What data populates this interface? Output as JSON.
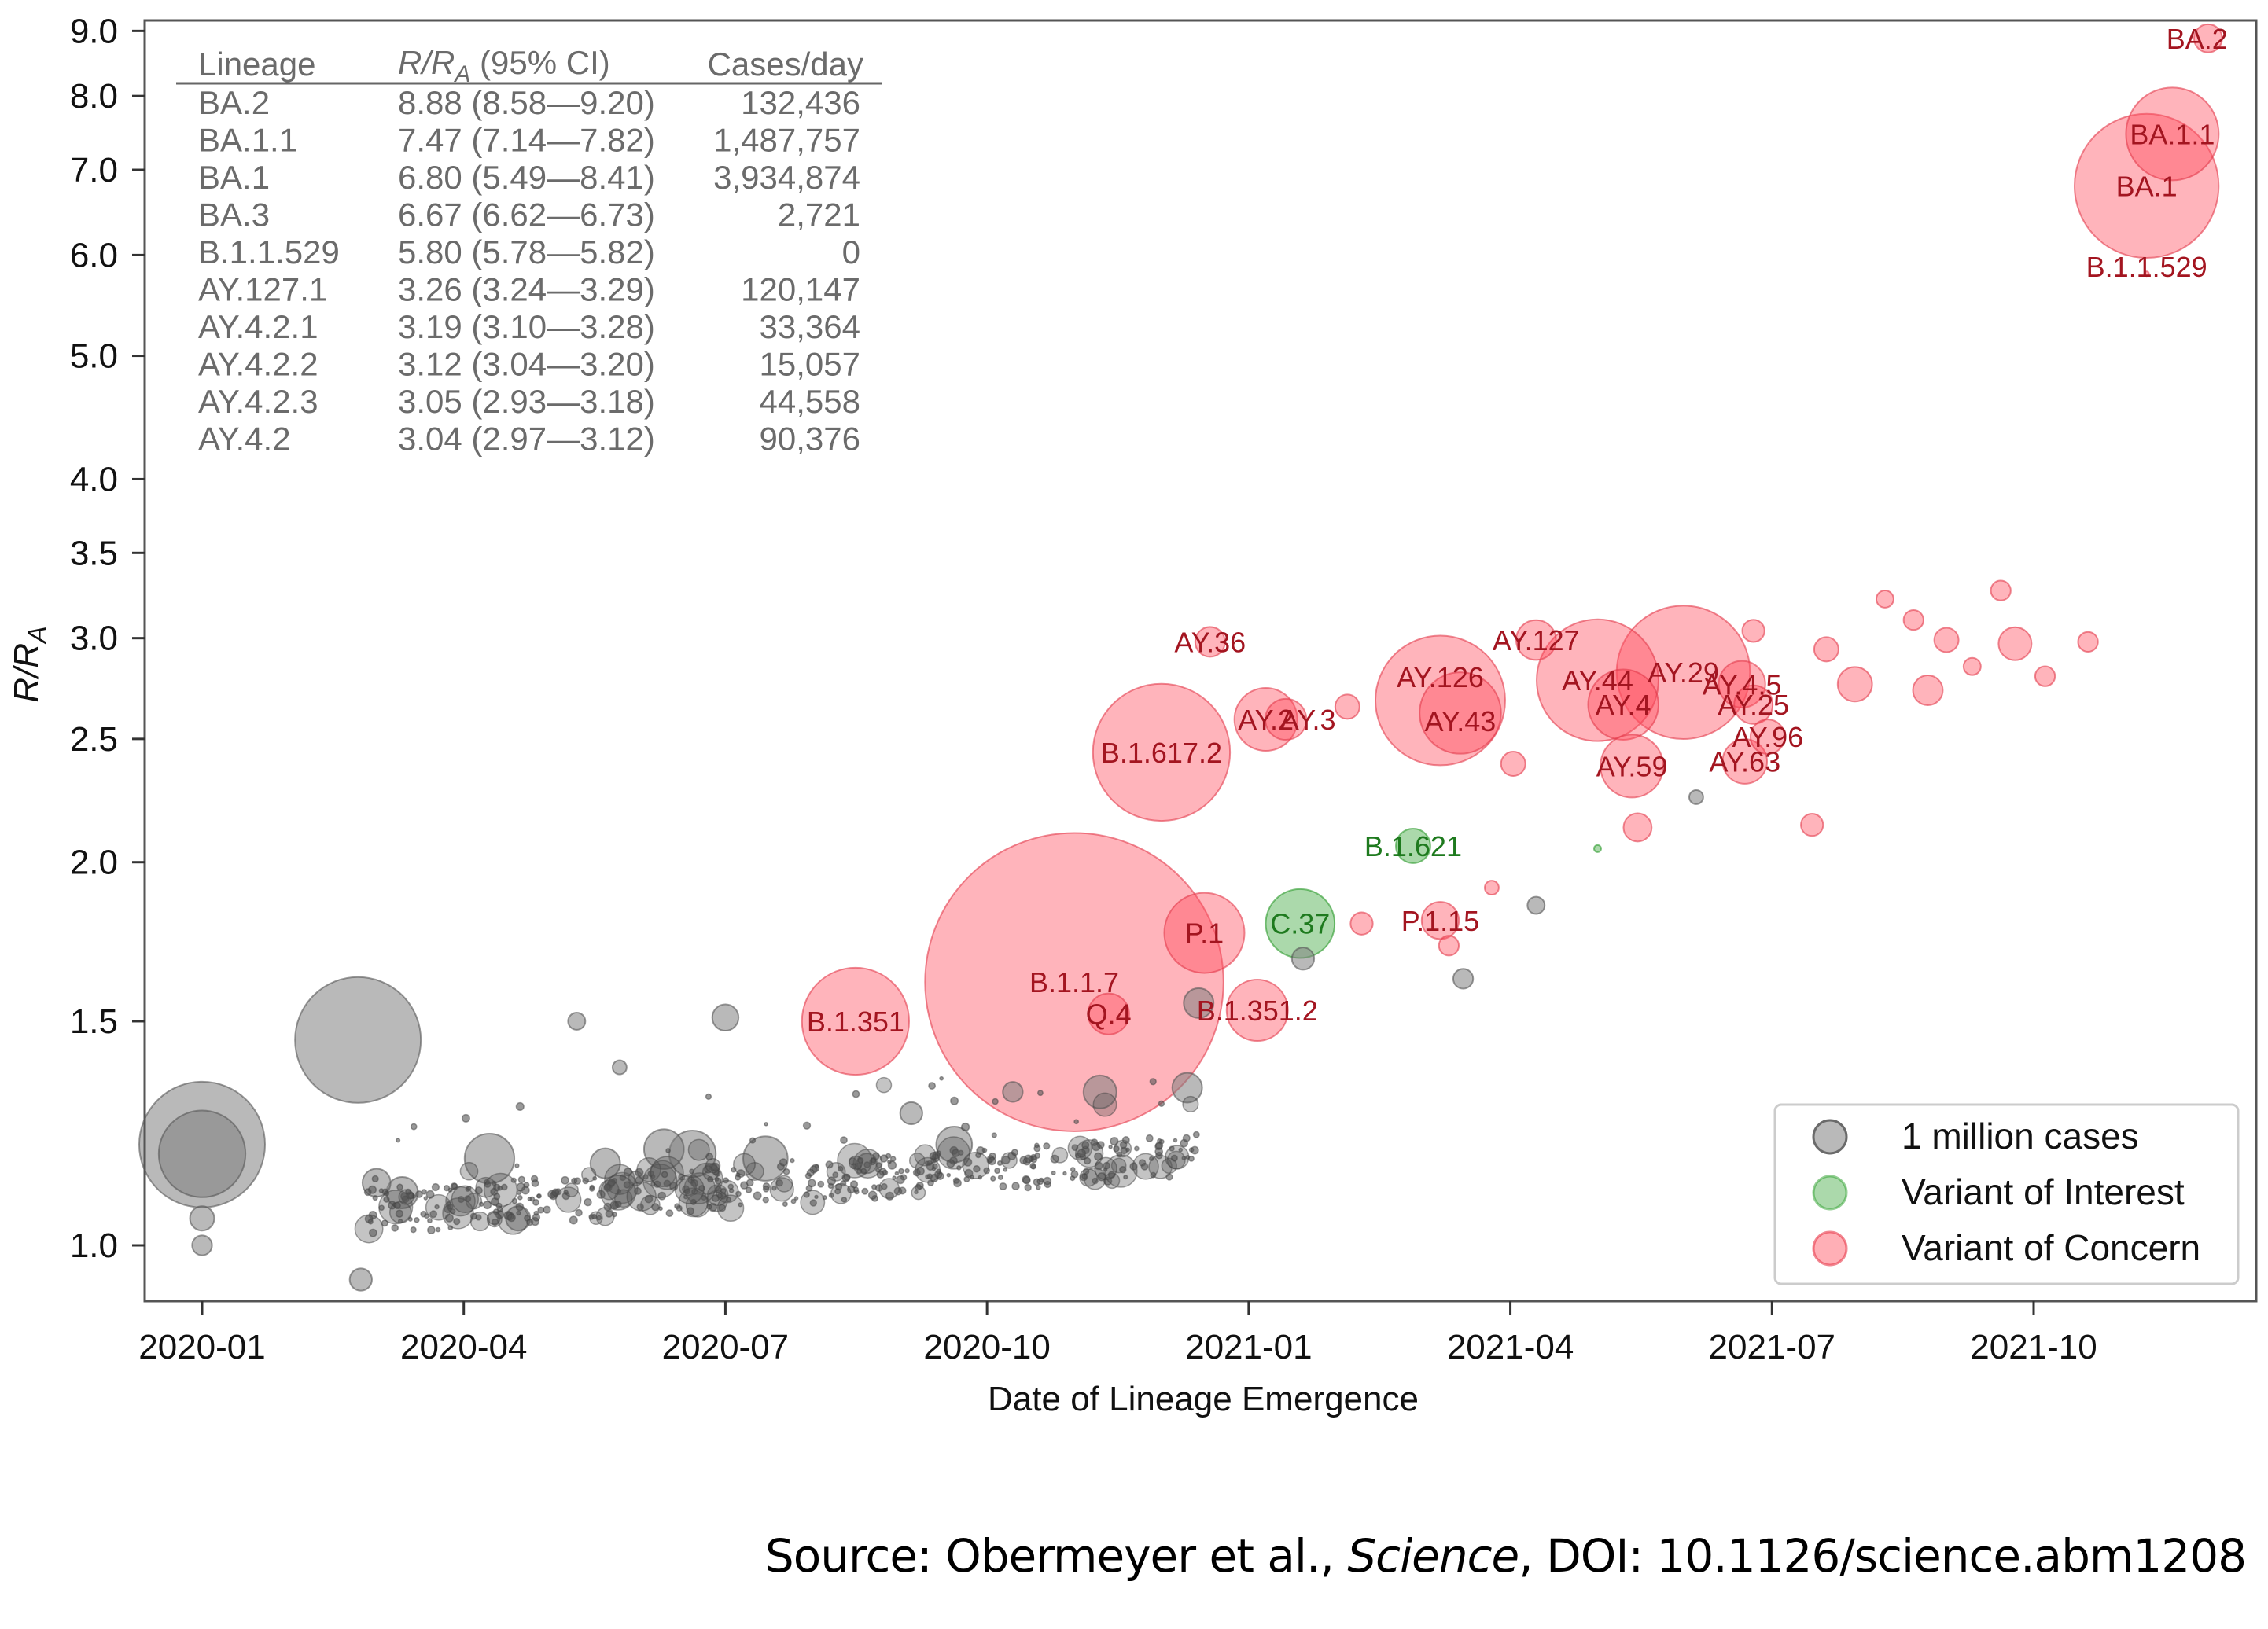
{
  "source": {
    "prefix": "Source: Obermeyer et al., ",
    "journal": "Science",
    "suffix": ", DOI: 10.1126/science.abm1208"
  },
  "colors": {
    "gray": "#7f7f7f",
    "voi": "#2ca02c",
    "voc": "#ff4d5e",
    "voc_label": "#a31520",
    "voi_label": "#1e7a1e",
    "table_text": "#6b6b6b"
  },
  "chart_data": {
    "type": "scatter",
    "subtype": "bubble",
    "title": "",
    "xlabel": "Date of Lineage Emergence",
    "ylabel": "R/R_A",
    "ylabel_main": "R/R",
    "ylabel_sub": "A",
    "yscale": "log",
    "ylim": [
      0.9,
      9.1
    ],
    "xlim": [
      "2019-12-10",
      "2021-12-20"
    ],
    "grid": false,
    "x_ticks": [
      "2020-01",
      "2020-04",
      "2020-07",
      "2020-10",
      "2021-01",
      "2021-04",
      "2021-07",
      "2021-10"
    ],
    "y_ticks": [
      "1.0",
      "1.5",
      "2.0",
      "2.5",
      "3.0",
      "3.5",
      "4.0",
      "5.0",
      "6.0",
      "7.0",
      "8.0",
      "9.0"
    ],
    "size_encoding": "cases (millions); legend reference = 1 million cases",
    "legend": {
      "placement": "bottom-right",
      "entries": [
        {
          "label": "1 million cases",
          "category": "other"
        },
        {
          "label": "Variant of Interest",
          "category": "voi"
        },
        {
          "label": "Variant of Concern",
          "category": "voc"
        }
      ]
    },
    "table": {
      "headers": {
        "lineage": "Lineage",
        "r_main": "R/R",
        "r_sub": "A",
        "r_rest": " (95% CI)",
        "cases": "Cases/day"
      },
      "rows": [
        {
          "lineage": "BA.2",
          "r": "8.88 (8.58—9.20)",
          "cases": "132,436"
        },
        {
          "lineage": "BA.1.1",
          "r": "7.47 (7.14—7.82)",
          "cases": "1,487,757"
        },
        {
          "lineage": "BA.1",
          "r": "6.80 (5.49—8.41)",
          "cases": "3,934,874"
        },
        {
          "lineage": "BA.3",
          "r": "6.67 (6.62—6.73)",
          "cases": "2,721"
        },
        {
          "lineage": "B.1.1.529",
          "r": "5.80 (5.78—5.82)",
          "cases": "0"
        },
        {
          "lineage": "AY.127.1",
          "r": "3.26 (3.24—3.29)",
          "cases": "120,147"
        },
        {
          "lineage": "AY.4.2.1",
          "r": "3.19 (3.10—3.28)",
          "cases": "33,364"
        },
        {
          "lineage": "AY.4.2.2",
          "r": "3.12 (3.04—3.20)",
          "cases": "15,057"
        },
        {
          "lineage": "AY.4.2.3",
          "r": "3.05 (2.93—3.18)",
          "cases": "44,558"
        },
        {
          "lineage": "AY.4.2",
          "r": "3.04 (2.97—3.12)",
          "cases": "90,376"
        }
      ]
    },
    "labeled_points": [
      {
        "label": "BA.2",
        "date": "2021-12-01",
        "r": 8.88,
        "cases_m": 0.8,
        "cat": "voc",
        "lx": -10,
        "ly": 0
      },
      {
        "label": "BA.1.1",
        "date": "2021-11-19",
        "r": 7.47,
        "cases_m": 8.7,
        "cat": "voc",
        "lx": 0,
        "ly": 0
      },
      {
        "label": "BA.1",
        "date": "2021-11-10",
        "r": 6.8,
        "cases_m": 21,
        "cat": "voc",
        "lx": 0,
        "ly": 0
      },
      {
        "label": "B.1.1.529",
        "date": "2021-11-10",
        "r": 5.8,
        "cases_m": 0.01,
        "cat": "voc",
        "lx": 0,
        "ly": 0
      },
      {
        "label": "AY.36",
        "date": "2020-12-18",
        "r": 2.98,
        "cases_m": 0.9,
        "cat": "voc",
        "lx": 0,
        "ly": 0
      },
      {
        "label": "B.1.617.2",
        "date": "2020-12-01",
        "r": 2.44,
        "cases_m": 19,
        "cat": "voc",
        "lx": 0,
        "ly": 0
      },
      {
        "label": "AY.2",
        "date": "2021-01-07",
        "r": 2.59,
        "cases_m": 4.0,
        "cat": "voc",
        "lx": 0,
        "ly": 0
      },
      {
        "label": "AY.3",
        "date": "2021-01-14",
        "r": 2.59,
        "cases_m": 1.7,
        "cat": "voc",
        "lx": 28,
        "ly": 0
      },
      {
        "label": "B.1.1.7",
        "date": "2020-11-01",
        "r": 1.61,
        "cases_m": 90,
        "cat": "voc",
        "lx": 0,
        "ly": 0
      },
      {
        "label": "B.1.351",
        "date": "2020-08-16",
        "r": 1.5,
        "cases_m": 11.6,
        "cat": "voc",
        "lx": 0,
        "ly": 0
      },
      {
        "label": "P.1",
        "date": "2020-12-16",
        "r": 1.76,
        "cases_m": 6.5,
        "cat": "voc",
        "lx": 0,
        "ly": 0
      },
      {
        "label": "Q.4",
        "date": "2020-11-13",
        "r": 1.52,
        "cases_m": 1.7,
        "cat": "voc",
        "lx": 0,
        "ly": 0
      },
      {
        "label": "B.1.351.2",
        "date": "2021-01-04",
        "r": 1.53,
        "cases_m": 3.8,
        "cat": "voc",
        "lx": 0,
        "ly": 0
      },
      {
        "label": "C.37",
        "date": "2021-01-19",
        "r": 1.79,
        "cases_m": 4.8,
        "cat": "voi",
        "lx": 0,
        "ly": 0
      },
      {
        "label": "B.1.621",
        "date": "2021-02-28",
        "r": 2.06,
        "cases_m": 1.2,
        "cat": "voi",
        "lx": 0,
        "ly": 0
      },
      {
        "label": "P.1.15",
        "date": "2021-03-07",
        "r": 1.8,
        "cases_m": 1.4,
        "cat": "voc",
        "lx": 0,
        "ly": 0
      },
      {
        "label": "AY.127",
        "date": "2021-04-10",
        "r": 2.99,
        "cases_m": 1.6,
        "cat": "voc",
        "lx": 0,
        "ly": 0
      },
      {
        "label": "AY.126",
        "date": "2021-03-07",
        "r": 2.68,
        "cases_m": 17,
        "cat": "voc",
        "lx": 0,
        "ly": -30
      },
      {
        "label": "AY.43",
        "date": "2021-03-14",
        "r": 2.62,
        "cases_m": 6.7,
        "cat": "voc",
        "lx": 0,
        "ly": 10
      },
      {
        "label": "AY.44",
        "date": "2021-05-01",
        "r": 2.78,
        "cases_m": 15,
        "cat": "voc",
        "lx": 0,
        "ly": 0
      },
      {
        "label": "AY.4",
        "date": "2021-05-10",
        "r": 2.66,
        "cases_m": 5,
        "cat": "voc",
        "lx": 0,
        "ly": 0
      },
      {
        "label": "AY.29",
        "date": "2021-05-31",
        "r": 2.82,
        "cases_m": 18,
        "cat": "voc",
        "lx": 0,
        "ly": 0
      },
      {
        "label": "AY.4.5",
        "date": "2021-06-21",
        "r": 2.76,
        "cases_m": 2.2,
        "cat": "voc",
        "lx": 0,
        "ly": 0
      },
      {
        "label": "AY.25",
        "date": "2021-06-25",
        "r": 2.66,
        "cases_m": 1.5,
        "cat": "voc",
        "lx": 0,
        "ly": 0
      },
      {
        "label": "AY.59",
        "date": "2021-05-13",
        "r": 2.38,
        "cases_m": 4.0,
        "cat": "voc",
        "lx": 0,
        "ly": 0
      },
      {
        "label": "AY.63",
        "date": "2021-06-22",
        "r": 2.4,
        "cases_m": 2.0,
        "cat": "voc",
        "lx": 0,
        "ly": 0
      },
      {
        "label": "AY.96",
        "date": "2021-06-30",
        "r": 2.51,
        "cases_m": 1.2,
        "cat": "voc",
        "lx": 0,
        "ly": 0
      }
    ],
    "unlabeled_points": [
      {
        "date": "2020-01-01",
        "r": 1.2,
        "cases_m": 16,
        "cat": "other"
      },
      {
        "date": "2020-01-01",
        "r": 1.18,
        "cases_m": 7.6,
        "cat": "other"
      },
      {
        "date": "2020-01-01",
        "r": 1.05,
        "cases_m": 0.6,
        "cat": "other"
      },
      {
        "date": "2020-01-01",
        "r": 1.0,
        "cases_m": 0.4,
        "cat": "other"
      },
      {
        "date": "2020-02-25",
        "r": 1.45,
        "cases_m": 16,
        "cat": "other"
      },
      {
        "date": "2020-03-01",
        "r": 1.12,
        "cases_m": 0.8,
        "cat": "other"
      },
      {
        "date": "2020-02-26",
        "r": 0.94,
        "cases_m": 0.5,
        "cat": "other"
      },
      {
        "date": "2020-03-10",
        "r": 1.1,
        "cases_m": 1.0,
        "cat": "other"
      },
      {
        "date": "2020-04-10",
        "r": 1.17,
        "cases_m": 2.5,
        "cat": "other"
      },
      {
        "date": "2020-04-20",
        "r": 1.05,
        "cases_m": 0.6,
        "cat": "other"
      },
      {
        "date": "2020-05-10",
        "r": 1.5,
        "cases_m": 0.3,
        "cat": "other"
      },
      {
        "date": "2020-05-25",
        "r": 1.38,
        "cases_m": 0.2,
        "cat": "other"
      },
      {
        "date": "2020-05-20",
        "r": 1.16,
        "cases_m": 0.9,
        "cat": "other"
      },
      {
        "date": "2020-06-10",
        "r": 1.19,
        "cases_m": 1.6,
        "cat": "other"
      },
      {
        "date": "2020-06-20",
        "r": 1.18,
        "cases_m": 2.2,
        "cat": "other"
      },
      {
        "date": "2020-07-01",
        "r": 1.51,
        "cases_m": 0.7,
        "cat": "other"
      },
      {
        "date": "2020-07-15",
        "r": 1.17,
        "cases_m": 2.0,
        "cat": "other"
      },
      {
        "date": "2020-08-20",
        "r": 1.16,
        "cases_m": 0.4,
        "cat": "other"
      },
      {
        "date": "2020-09-05",
        "r": 1.27,
        "cases_m": 0.5,
        "cat": "other"
      },
      {
        "date": "2020-09-20",
        "r": 1.2,
        "cases_m": 1.3,
        "cat": "other"
      },
      {
        "date": "2020-10-10",
        "r": 1.32,
        "cases_m": 0.4,
        "cat": "other"
      },
      {
        "date": "2020-11-10",
        "r": 1.32,
        "cases_m": 1.1,
        "cat": "other"
      },
      {
        "date": "2020-12-10",
        "r": 1.33,
        "cases_m": 0.9,
        "cat": "other"
      },
      {
        "date": "2020-12-14",
        "r": 1.55,
        "cases_m": 0.9,
        "cat": "other"
      },
      {
        "date": "2021-01-20",
        "r": 1.68,
        "cases_m": 0.5,
        "cat": "other"
      },
      {
        "date": "2021-04-10",
        "r": 1.85,
        "cases_m": 0.3,
        "cat": "other"
      },
      {
        "date": "2021-03-15",
        "r": 1.62,
        "cases_m": 0.4,
        "cat": "other"
      },
      {
        "date": "2021-06-05",
        "r": 2.25,
        "cases_m": 0.2,
        "cat": "other"
      },
      {
        "date": "2021-02-05",
        "r": 2.65,
        "cases_m": 0.6,
        "cat": "voc"
      },
      {
        "date": "2021-04-02",
        "r": 2.39,
        "cases_m": 0.6,
        "cat": "voc"
      },
      {
        "date": "2021-05-15",
        "r": 2.13,
        "cases_m": 0.8,
        "cat": "voc"
      },
      {
        "date": "2021-06-25",
        "r": 3.04,
        "cases_m": 0.5,
        "cat": "voc"
      },
      {
        "date": "2021-07-20",
        "r": 2.94,
        "cases_m": 0.6,
        "cat": "voc"
      },
      {
        "date": "2021-07-30",
        "r": 2.76,
        "cases_m": 1.2,
        "cat": "voc"
      },
      {
        "date": "2021-08-10",
        "r": 3.22,
        "cases_m": 0.3,
        "cat": "voc"
      },
      {
        "date": "2021-08-20",
        "r": 3.1,
        "cases_m": 0.4,
        "cat": "voc"
      },
      {
        "date": "2021-08-25",
        "r": 2.73,
        "cases_m": 0.9,
        "cat": "voc"
      },
      {
        "date": "2021-09-01",
        "r": 2.99,
        "cases_m": 0.6,
        "cat": "voc"
      },
      {
        "date": "2021-09-10",
        "r": 2.85,
        "cases_m": 0.3,
        "cat": "voc"
      },
      {
        "date": "2021-09-20",
        "r": 3.27,
        "cases_m": 0.4,
        "cat": "voc"
      },
      {
        "date": "2021-09-25",
        "r": 2.97,
        "cases_m": 1.1,
        "cat": "voc"
      },
      {
        "date": "2021-10-05",
        "r": 2.8,
        "cases_m": 0.4,
        "cat": "voc"
      },
      {
        "date": "2021-10-20",
        "r": 2.98,
        "cases_m": 0.4,
        "cat": "voc"
      },
      {
        "date": "2021-07-15",
        "r": 2.14,
        "cases_m": 0.5,
        "cat": "voc"
      },
      {
        "date": "2021-03-10",
        "r": 1.72,
        "cases_m": 0.4,
        "cat": "voc"
      },
      {
        "date": "2021-02-10",
        "r": 1.79,
        "cases_m": 0.5,
        "cat": "voc"
      },
      {
        "date": "2021-03-25",
        "r": 1.91,
        "cases_m": 0.2,
        "cat": "voc"
      },
      {
        "date": "2021-05-01",
        "r": 2.05,
        "cases_m": 0.05,
        "cat": "voi"
      }
    ]
  }
}
